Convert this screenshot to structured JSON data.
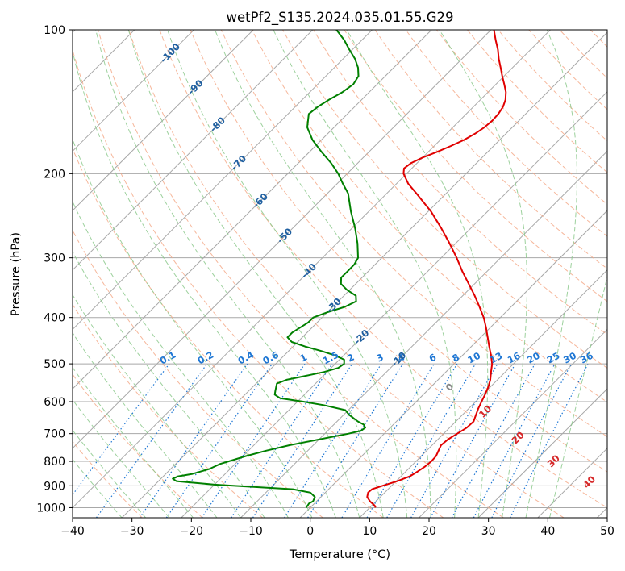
{
  "chart_data": {
    "type": "skewt",
    "title": "wetPf2_S135.2024.035.01.55.G29",
    "xlabel": "Temperature (°C)",
    "ylabel": "Pressure (hPa)",
    "xlim": [
      -40,
      50
    ],
    "ylim": [
      1050,
      100
    ],
    "y_scale": "log",
    "skew": "45deg",
    "grid": true,
    "x_ticks": [
      -40,
      -30,
      -20,
      -10,
      0,
      10,
      20,
      30,
      40,
      50
    ],
    "x_tick_labels": [
      "−40",
      "−30",
      "−20",
      "−10",
      "0",
      "10",
      "20",
      "30",
      "40",
      "50"
    ],
    "y_ticks": [
      1000,
      900,
      800,
      700,
      600,
      500,
      400,
      300,
      200,
      100
    ],
    "y_tick_labels": [
      "1000",
      "900",
      "800",
      "700",
      "600",
      "500",
      "400",
      "300",
      "200",
      "100"
    ],
    "colors": {
      "temperature": "#e00000",
      "dewpoint": "#008000",
      "isotherm_grid": "#a8a8a8",
      "dry_adiabat": "#f4a582",
      "moist_adiabat": "#8cc98c",
      "mixing_ratio": "#1f77d4",
      "isotherm_label": "#1f5fa0",
      "iso_label_red": "#d62728",
      "iso_label_gray": "#888888"
    },
    "series": [
      {
        "name": "temperature",
        "points": [
          [
            1000,
            11.0
          ],
          [
            990,
            10.5
          ],
          [
            970,
            9.0
          ],
          [
            950,
            7.8
          ],
          [
            930,
            7.2
          ],
          [
            915,
            7.3
          ],
          [
            900,
            8.5
          ],
          [
            880,
            10.2
          ],
          [
            860,
            11.5
          ],
          [
            840,
            12.0
          ],
          [
            820,
            12.4
          ],
          [
            800,
            12.6
          ],
          [
            780,
            12.5
          ],
          [
            760,
            12.0
          ],
          [
            740,
            11.5
          ],
          [
            720,
            11.7
          ],
          [
            700,
            12.3
          ],
          [
            680,
            12.9
          ],
          [
            660,
            13.0
          ],
          [
            640,
            12.3
          ],
          [
            620,
            11.6
          ],
          [
            600,
            11.0
          ],
          [
            580,
            10.4
          ],
          [
            560,
            9.7
          ],
          [
            540,
            8.8
          ],
          [
            520,
            7.6
          ],
          [
            500,
            6.4
          ],
          [
            480,
            4.8
          ],
          [
            460,
            3.0
          ],
          [
            440,
            1.2
          ],
          [
            420,
            -0.7
          ],
          [
            400,
            -2.8
          ],
          [
            380,
            -5.3
          ],
          [
            360,
            -8.0
          ],
          [
            340,
            -11.0
          ],
          [
            320,
            -14.2
          ],
          [
            300,
            -17.4
          ],
          [
            280,
            -21.0
          ],
          [
            260,
            -25.0
          ],
          [
            240,
            -29.5
          ],
          [
            220,
            -35.0
          ],
          [
            210,
            -38.0
          ],
          [
            200,
            -40.5
          ],
          [
            195,
            -41.3
          ],
          [
            190,
            -41.0
          ],
          [
            185,
            -40.0
          ],
          [
            180,
            -38.5
          ],
          [
            175,
            -37.2
          ],
          [
            170,
            -36.0
          ],
          [
            165,
            -35.2
          ],
          [
            160,
            -34.7
          ],
          [
            155,
            -34.5
          ],
          [
            150,
            -34.6
          ],
          [
            145,
            -35.0
          ],
          [
            140,
            -35.8
          ],
          [
            135,
            -37.0
          ],
          [
            130,
            -38.6
          ],
          [
            125,
            -40.3
          ],
          [
            120,
            -42.0
          ],
          [
            115,
            -43.8
          ],
          [
            110,
            -45.5
          ],
          [
            105,
            -47.5
          ],
          [
            100,
            -49.5
          ]
        ]
      },
      {
        "name": "dewpoint",
        "points": [
          [
            1000,
            -0.7
          ],
          [
            990,
            -0.8
          ],
          [
            980,
            -0.9
          ],
          [
            970,
            -0.6
          ],
          [
            950,
            -1.0
          ],
          [
            930,
            -2.5
          ],
          [
            915,
            -6.0
          ],
          [
            905,
            -13.0
          ],
          [
            895,
            -20.0
          ],
          [
            880,
            -27.0
          ],
          [
            870,
            -28.0
          ],
          [
            860,
            -27.5
          ],
          [
            850,
            -25.5
          ],
          [
            840,
            -24.5
          ],
          [
            830,
            -23.5
          ],
          [
            820,
            -23.0
          ],
          [
            810,
            -22.5
          ],
          [
            800,
            -21.5
          ],
          [
            780,
            -19.5
          ],
          [
            760,
            -17.0
          ],
          [
            740,
            -14.0
          ],
          [
            720,
            -10.0
          ],
          [
            700,
            -6.0
          ],
          [
            690,
            -4.4
          ],
          [
            680,
            -4.2
          ],
          [
            670,
            -5.0
          ],
          [
            660,
            -6.5
          ],
          [
            640,
            -9.0
          ],
          [
            625,
            -10.5
          ],
          [
            610,
            -15.0
          ],
          [
            600,
            -19.0
          ],
          [
            590,
            -23.5
          ],
          [
            580,
            -25.0
          ],
          [
            570,
            -25.5
          ],
          [
            560,
            -26.0
          ],
          [
            550,
            -26.5
          ],
          [
            540,
            -25.5
          ],
          [
            530,
            -23.0
          ],
          [
            520,
            -20.5
          ],
          [
            510,
            -18.8
          ],
          [
            500,
            -18.5
          ],
          [
            490,
            -19.2
          ],
          [
            480,
            -21.5
          ],
          [
            470,
            -24.5
          ],
          [
            460,
            -28.0
          ],
          [
            450,
            -31.0
          ],
          [
            440,
            -32.5
          ],
          [
            430,
            -32.5
          ],
          [
            420,
            -32.0
          ],
          [
            410,
            -31.5
          ],
          [
            400,
            -31.5
          ],
          [
            390,
            -30.0
          ],
          [
            380,
            -28.0
          ],
          [
            370,
            -27.0
          ],
          [
            360,
            -28.0
          ],
          [
            350,
            -30.5
          ],
          [
            340,
            -32.5
          ],
          [
            330,
            -33.5
          ],
          [
            320,
            -33.5
          ],
          [
            310,
            -33.5
          ],
          [
            300,
            -34.0
          ],
          [
            280,
            -36.5
          ],
          [
            260,
            -39.5
          ],
          [
            240,
            -43.0
          ],
          [
            220,
            -46.5
          ],
          [
            210,
            -49.0
          ],
          [
            200,
            -51.5
          ],
          [
            190,
            -54.5
          ],
          [
            180,
            -58.0
          ],
          [
            170,
            -61.5
          ],
          [
            160,
            -64.5
          ],
          [
            150,
            -66.5
          ],
          [
            145,
            -66.2
          ],
          [
            140,
            -65.5
          ],
          [
            135,
            -64.5
          ],
          [
            130,
            -64.0
          ],
          [
            125,
            -64.5
          ],
          [
            120,
            -66.0
          ],
          [
            115,
            -68.0
          ],
          [
            110,
            -70.5
          ],
          [
            105,
            -73.0
          ],
          [
            100,
            -76.0
          ]
        ]
      }
    ],
    "isotherm_labels": [
      {
        "t": -100,
        "text": "-100",
        "p": 112
      },
      {
        "t": -90,
        "text": "-90",
        "p": 132
      },
      {
        "t": -80,
        "text": "-80",
        "p": 158
      },
      {
        "t": -70,
        "text": "-70",
        "p": 190
      },
      {
        "t": -60,
        "text": "-60",
        "p": 228
      },
      {
        "t": -50,
        "text": "-50",
        "p": 270
      },
      {
        "t": -40,
        "text": "-40",
        "p": 320
      },
      {
        "t": -30,
        "text": "-30",
        "p": 378
      },
      {
        "t": -20,
        "text": "-20",
        "p": 440
      },
      {
        "t": -10,
        "text": "-10",
        "p": 490
      }
    ],
    "mixing_ratio_labels": [
      "0.1",
      "0.2",
      "0.4",
      "0.6",
      "1",
      "1.5",
      "2",
      "3",
      "4",
      "6",
      "8",
      "10",
      "13",
      "16",
      "20",
      "25",
      "30",
      "36"
    ],
    "red_labels": [
      {
        "text": "0",
        "t": 23.5,
        "p": 560,
        "color": "gray"
      },
      {
        "text": "10",
        "t": 29.5,
        "p": 630,
        "color": "red"
      },
      {
        "text": "20",
        "t": 35,
        "p": 715,
        "color": "red"
      },
      {
        "text": "30",
        "t": 41,
        "p": 800,
        "color": "red"
      },
      {
        "text": "40",
        "t": 47,
        "p": 885,
        "color": "red"
      }
    ]
  }
}
